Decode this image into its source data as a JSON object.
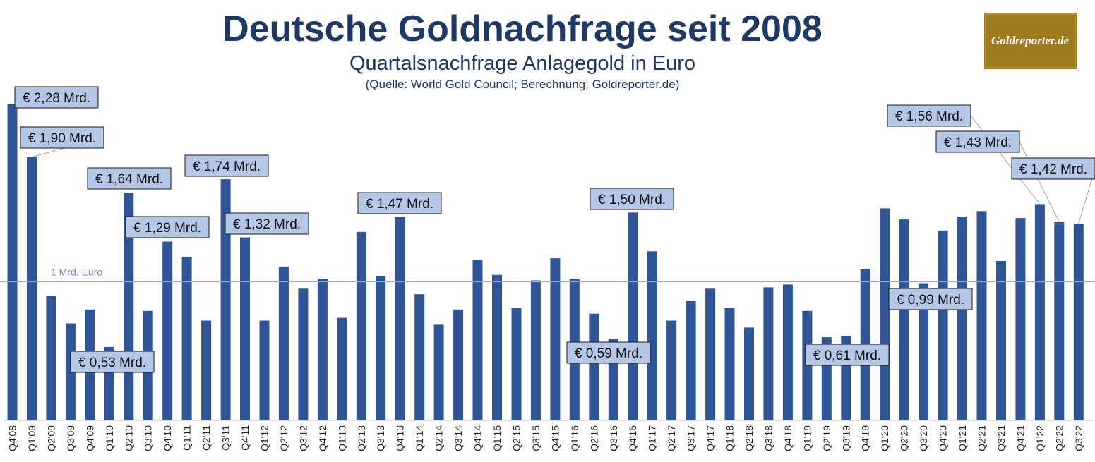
{
  "header": {
    "title": "Deutsche Goldnachfrage seit 2008",
    "subtitle": "Quartalsnachfrage Anlagegold in Euro",
    "source": "(Quelle: World Gold Council; Berechnung: Goldreporter.de)"
  },
  "logo": {
    "text": "Goldreporter.de"
  },
  "colors": {
    "bar": "#2f5597",
    "reference_line": "#8faadc",
    "label_fill": "#b4c7e7",
    "logo_bg": "#a07a1e"
  },
  "chart_data": {
    "type": "bar",
    "title": "Deutsche Goldnachfrage seit 2008",
    "subtitle": "Quartalsnachfrage Anlagegold in Euro",
    "xlabel": "",
    "ylabel": "",
    "ylim": [
      0,
      2.3
    ],
    "grid": false,
    "categories": [
      "Q4'08",
      "Q1'09",
      "Q2'09",
      "Q3'09",
      "Q4'09",
      "Q1'10",
      "Q2'10",
      "Q3'10",
      "Q4'10",
      "Q1'11",
      "Q2'11",
      "Q3'11",
      "Q4'11",
      "Q1'12",
      "Q2'12",
      "Q3'12",
      "Q4'12",
      "Q1'13",
      "Q2'13",
      "Q3'13",
      "Q4'13",
      "Q1'14",
      "Q2'14",
      "Q3'14",
      "Q4'14",
      "Q1'15",
      "Q2'15",
      "Q3'15",
      "Q4'15",
      "Q1'16",
      "Q2'16",
      "Q3'16",
      "Q4'16",
      "Q1'17",
      "Q2'17",
      "Q3'17",
      "Q4'17",
      "Q1'18",
      "Q2'18",
      "Q3'18",
      "Q4'18",
      "Q1'19",
      "Q2'19",
      "Q3'19",
      "Q4'19",
      "Q1'20",
      "Q2'20",
      "Q3'20",
      "Q4'20",
      "Q1'21",
      "Q2'21",
      "Q3'21",
      "Q4'21",
      "Q1'22",
      "Q2'22",
      "Q3'22"
    ],
    "series": [
      {
        "values": [
          2.28,
          1.9,
          0.9,
          0.7,
          0.8,
          0.53,
          1.64,
          0.79,
          1.29,
          1.18,
          0.72,
          1.74,
          1.32,
          0.72,
          1.11,
          0.95,
          1.02,
          0.74,
          1.36,
          1.04,
          1.47,
          0.91,
          0.69,
          0.8,
          1.16,
          1.05,
          0.81,
          1.01,
          1.17,
          1.02,
          0.77,
          0.59,
          1.5,
          1.22,
          0.72,
          0.86,
          0.95,
          0.81,
          0.67,
          0.96,
          0.98,
          0.79,
          0.6,
          0.61,
          1.09,
          1.53,
          1.45,
          0.99,
          1.37,
          1.47,
          1.51,
          1.15,
          1.46,
          1.56,
          1.43,
          1.42
        ]
      }
    ],
    "reference_line": {
      "value": 1.0,
      "label": "1 Mrd. Euro"
    },
    "annotations": [
      {
        "category": "Q4'08",
        "text": "€ 2,28 Mrd."
      },
      {
        "category": "Q1'09",
        "text": "€ 1,90 Mrd."
      },
      {
        "category": "Q1'10",
        "text": "€ 0,53 Mrd."
      },
      {
        "category": "Q2'10",
        "text": "€ 1,64 Mrd."
      },
      {
        "category": "Q4'10",
        "text": "€ 1,29 Mrd."
      },
      {
        "category": "Q3'11",
        "text": "€ 1,74 Mrd."
      },
      {
        "category": "Q4'11",
        "text": "€ 1,32 Mrd."
      },
      {
        "category": "Q4'13",
        "text": "€ 1,47 Mrd."
      },
      {
        "category": "Q3'16",
        "text": "€ 0,59 Mrd."
      },
      {
        "category": "Q4'16",
        "text": "€ 1,50 Mrd."
      },
      {
        "category": "Q3'19",
        "text": "€ 0,61 Mrd."
      },
      {
        "category": "Q3'20",
        "text": "€ 0,99 Mrd."
      },
      {
        "category": "Q1'22",
        "text": "€ 1,56 Mrd."
      },
      {
        "category": "Q2'22",
        "text": "€ 1,43 Mrd."
      },
      {
        "category": "Q3'22",
        "text": "€ 1,42 Mrd."
      }
    ]
  }
}
